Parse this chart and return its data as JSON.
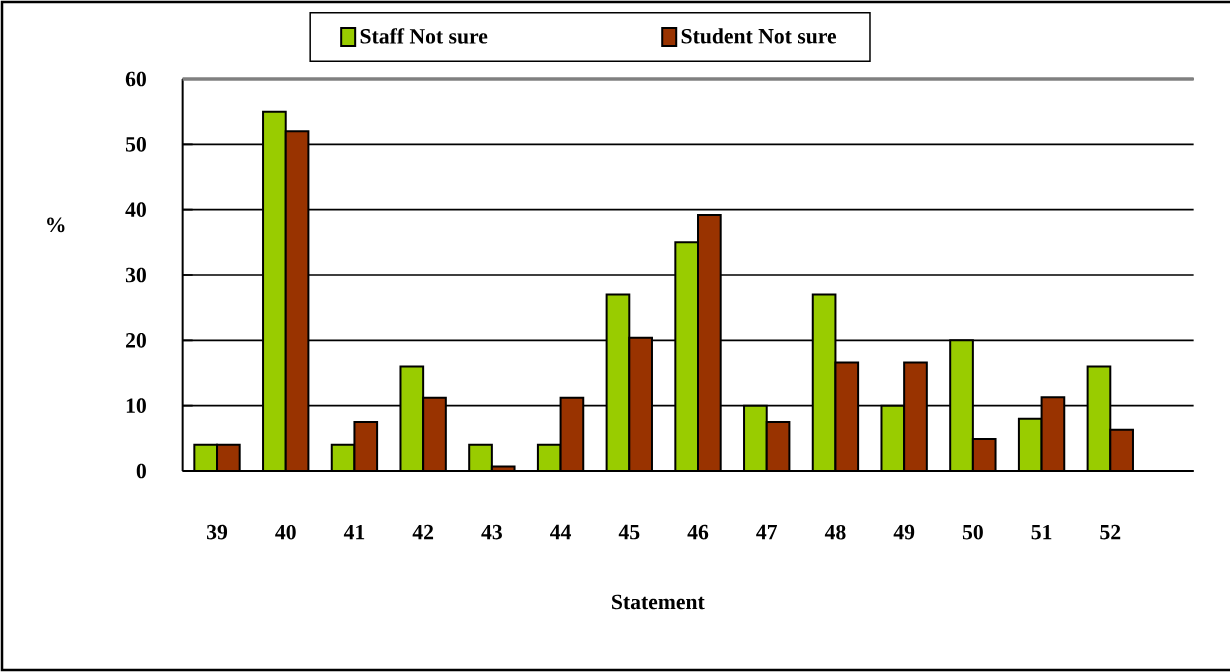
{
  "chart_data": {
    "type": "bar",
    "xlabel": "Statement",
    "ylabel": "%",
    "categories": [
      "39",
      "40",
      "41",
      "42",
      "43",
      "44",
      "45",
      "46",
      "47",
      "48",
      "49",
      "50",
      "51",
      "52"
    ],
    "series": [
      {
        "name": "Staff Not sure",
        "color": "#99cc00",
        "values": [
          4,
          55,
          4,
          16,
          4,
          4,
          27,
          35,
          10,
          27,
          10,
          20,
          8,
          16
        ]
      },
      {
        "name": "Student Not sure",
        "color": "#993300",
        "values": [
          4,
          52,
          7.5,
          11.2,
          0.7,
          11.2,
          20.4,
          39.2,
          7.5,
          16.6,
          16.6,
          4.9,
          11.3,
          6.3
        ]
      }
    ],
    "ylim": [
      0,
      60
    ],
    "yticks": [
      0,
      10,
      20,
      30,
      40,
      50,
      60
    ],
    "grid": "y",
    "legend": "top"
  }
}
